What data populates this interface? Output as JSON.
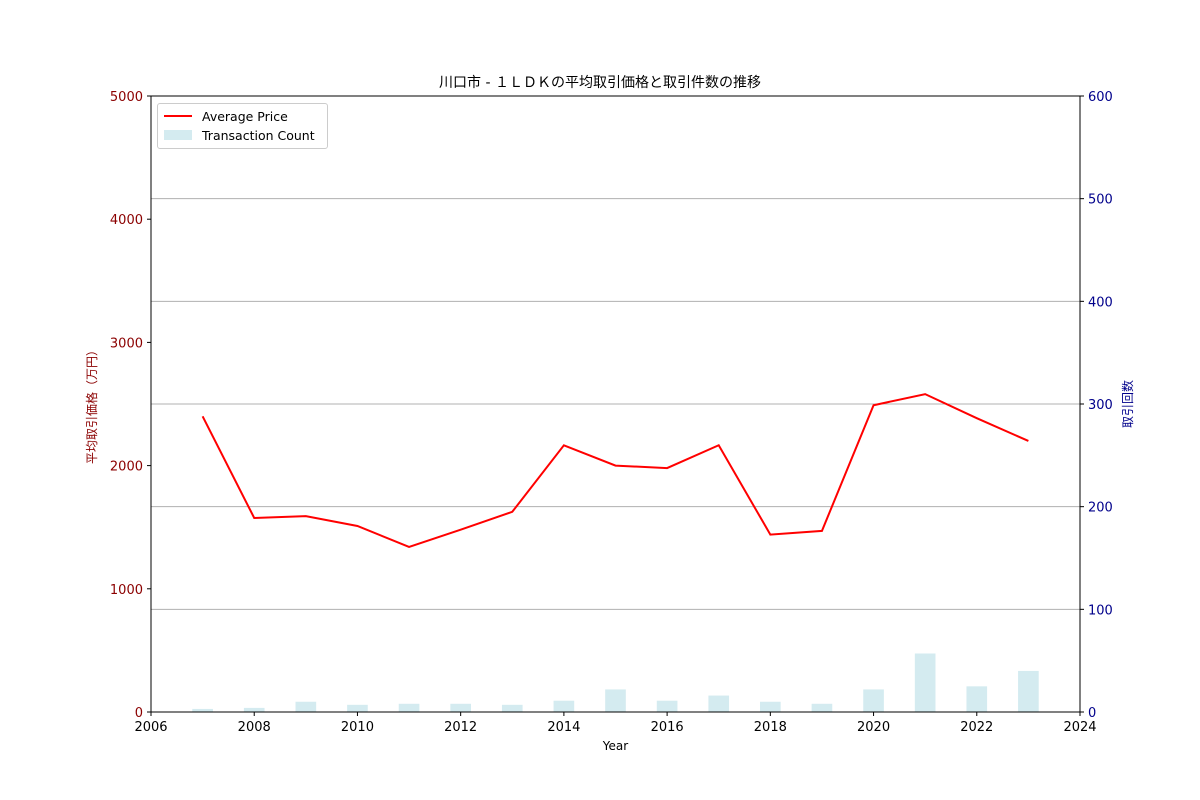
{
  "chart_data": {
    "type": "bar+line",
    "title": "川口市 - １ＬＤＫの平均取引価格と取引件数の推移",
    "xlabel": "Year",
    "ylabel_left": "平均取引価格（万円）",
    "ylabel_right": "取引回数",
    "xlim": [
      2006,
      2024
    ],
    "ylim_left": [
      0,
      5000
    ],
    "ylim_right": [
      0,
      600
    ],
    "x_ticks": [
      "2006",
      "2008",
      "2010",
      "2012",
      "2014",
      "2016",
      "2018",
      "2020",
      "2022",
      "2024"
    ],
    "y_ticks_left": [
      "0",
      "1000",
      "2000",
      "3000",
      "4000",
      "5000"
    ],
    "y_ticks_right": [
      "0",
      "100",
      "200",
      "300",
      "400",
      "500",
      "600"
    ],
    "grid": "horizontal, right-axis ticks",
    "legend_position": "upper left",
    "x": [
      2007,
      2008,
      2009,
      2010,
      2011,
      2012,
      2013,
      2014,
      2015,
      2016,
      2017,
      2018,
      2019,
      2020,
      2021,
      2022,
      2023
    ],
    "series": [
      {
        "name": "Average Price",
        "type": "line",
        "axis": "left",
        "color": "#ff0000",
        "values": [
          2400,
          1575,
          1590,
          1510,
          1340,
          1480,
          1625,
          2165,
          2000,
          1980,
          2165,
          1440,
          1470,
          2490,
          2580,
          2385,
          2200
        ]
      },
      {
        "name": "Transaction Count",
        "type": "bar",
        "axis": "right",
        "color": "#d4ebf0",
        "values": [
          3,
          4,
          10,
          7,
          8,
          8,
          7,
          11,
          22,
          11,
          16,
          10,
          8,
          22,
          57,
          25,
          40
        ]
      }
    ],
    "colors": {
      "left_axis": "#8b0000",
      "right_axis": "#00008b",
      "grid": "#b0b0b0"
    }
  }
}
